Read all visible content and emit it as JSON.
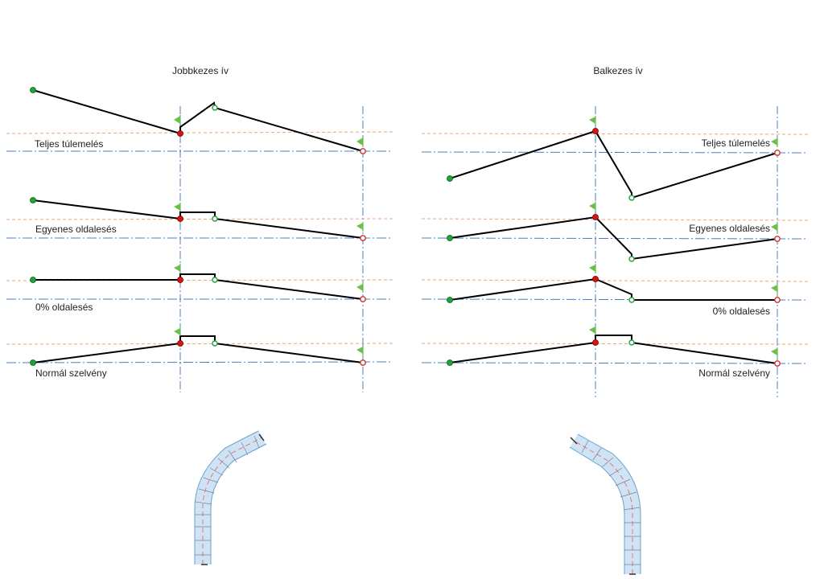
{
  "titles": {
    "left": "Jobbkezes ív",
    "right": "Balkezes ív"
  },
  "left_labels": {
    "row1": "Teljes túlemelés",
    "row2": "Egyenes oldalesés",
    "row3": "0% oldalesés",
    "row4": "Normál szelvény"
  },
  "right_labels": {
    "row1": "Teljes túlemelés",
    "row2": "Egyenes oldalesés",
    "row3": "0% oldalesés",
    "row4": "Normál szelvény"
  },
  "colors": {
    "start_point": "#1fa33b",
    "pivot_point": "#e01010",
    "outer_point": "#1fa33b",
    "end_point": "#e04040",
    "guide_blue": "#4a7fc1",
    "guide_orange": "#f0a57a",
    "flag_green": "#6cc04a"
  },
  "icons": [
    "flag-icon",
    "start-point-icon",
    "pivot-point-icon",
    "end-point-icon"
  ]
}
